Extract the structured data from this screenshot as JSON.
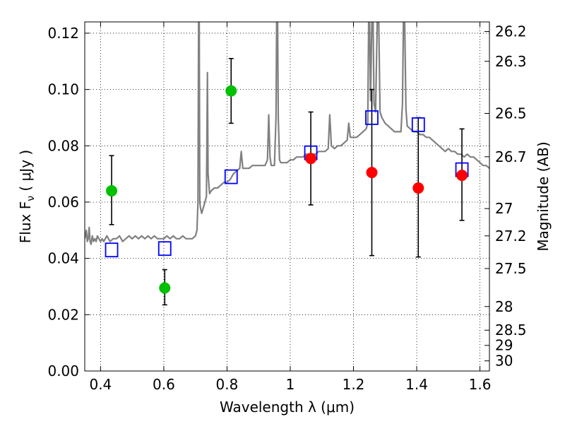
{
  "chart_data": {
    "type": "scatter",
    "xlabel": "Wavelength  λ (μm)",
    "ylabel": "Flux  F",
    "ylabel_sub": "ν",
    "ylabel_unit": "  ( μJy )",
    "ylabel_right": "Magnitude (AB)",
    "xlim": [
      0.35,
      1.63
    ],
    "ylim": [
      0.0,
      0.124
    ],
    "xticks": [
      0.4,
      0.6,
      0.8,
      1.0,
      1.2,
      1.4,
      1.6
    ],
    "xtick_labels": [
      "0.4",
      "0.6",
      "0.8",
      "1",
      "1.2",
      "1.4",
      "1.6"
    ],
    "yticks": [
      0.0,
      0.02,
      0.04,
      0.06,
      0.08,
      0.1,
      0.12
    ],
    "ytick_labels": [
      "0.00",
      "0.02",
      "0.04",
      "0.06",
      "0.08",
      "0.10",
      "0.12"
    ],
    "right_ticks": [
      {
        "label": "26.2",
        "flux": 0.1206
      },
      {
        "label": "26.3",
        "flux": 0.11
      },
      {
        "label": "26.5",
        "flux": 0.0915
      },
      {
        "label": "26.7",
        "flux": 0.0761
      },
      {
        "label": "27",
        "flux": 0.0577
      },
      {
        "label": "27.2",
        "flux": 0.048
      },
      {
        "label": "27.5",
        "flux": 0.0364
      },
      {
        "label": "28",
        "flux": 0.0229
      },
      {
        "label": "28.5",
        "flux": 0.0145
      },
      {
        "label": "29",
        "flux": 0.0091
      },
      {
        "label": "30",
        "flux": 0.0036
      }
    ],
    "grid": true,
    "colors": {
      "spectrum": "#808080",
      "green": "#00c000",
      "red": "#ff0000",
      "model": "#0000ff",
      "errorbar": "#000000"
    },
    "spectrum": [
      [
        0.35,
        0.047
      ],
      [
        0.352,
        0.048
      ],
      [
        0.355,
        0.05
      ],
      [
        0.358,
        0.046
      ],
      [
        0.361,
        0.047
      ],
      [
        0.364,
        0.051
      ],
      [
        0.367,
        0.046
      ],
      [
        0.37,
        0.045
      ],
      [
        0.374,
        0.048
      ],
      [
        0.378,
        0.046
      ],
      [
        0.382,
        0.047
      ],
      [
        0.386,
        0.046
      ],
      [
        0.39,
        0.048
      ],
      [
        0.395,
        0.047
      ],
      [
        0.4,
        0.046
      ],
      [
        0.405,
        0.047
      ],
      [
        0.41,
        0.046
      ],
      [
        0.415,
        0.047
      ],
      [
        0.42,
        0.048
      ],
      [
        0.425,
        0.047
      ],
      [
        0.43,
        0.046
      ],
      [
        0.44,
        0.047
      ],
      [
        0.45,
        0.047
      ],
      [
        0.46,
        0.048
      ],
      [
        0.47,
        0.046
      ],
      [
        0.48,
        0.047
      ],
      [
        0.49,
        0.048
      ],
      [
        0.5,
        0.047
      ],
      [
        0.51,
        0.048
      ],
      [
        0.52,
        0.047
      ],
      [
        0.53,
        0.048
      ],
      [
        0.54,
        0.047
      ],
      [
        0.55,
        0.048
      ],
      [
        0.56,
        0.047
      ],
      [
        0.57,
        0.048
      ],
      [
        0.58,
        0.047
      ],
      [
        0.59,
        0.047
      ],
      [
        0.6,
        0.047
      ],
      [
        0.61,
        0.048
      ],
      [
        0.62,
        0.047
      ],
      [
        0.63,
        0.048
      ],
      [
        0.64,
        0.047
      ],
      [
        0.65,
        0.047
      ],
      [
        0.66,
        0.048
      ],
      [
        0.67,
        0.047
      ],
      [
        0.68,
        0.047
      ],
      [
        0.69,
        0.047
      ],
      [
        0.7,
        0.048
      ],
      [
        0.705,
        0.05
      ],
      [
        0.708,
        0.06
      ],
      [
        0.71,
        0.124
      ],
      [
        0.712,
        0.124
      ],
      [
        0.714,
        0.06
      ],
      [
        0.716,
        0.058
      ],
      [
        0.72,
        0.056
      ],
      [
        0.725,
        0.058
      ],
      [
        0.73,
        0.06
      ],
      [
        0.735,
        0.062
      ],
      [
        0.738,
        0.106
      ],
      [
        0.74,
        0.07
      ],
      [
        0.745,
        0.063
      ],
      [
        0.75,
        0.064
      ],
      [
        0.76,
        0.065
      ],
      [
        0.77,
        0.065
      ],
      [
        0.78,
        0.066
      ],
      [
        0.79,
        0.067
      ],
      [
        0.8,
        0.067
      ],
      [
        0.81,
        0.068
      ],
      [
        0.82,
        0.07
      ],
      [
        0.83,
        0.071
      ],
      [
        0.84,
        0.072
      ],
      [
        0.845,
        0.078
      ],
      [
        0.85,
        0.072
      ],
      [
        0.86,
        0.072
      ],
      [
        0.87,
        0.072
      ],
      [
        0.88,
        0.073
      ],
      [
        0.89,
        0.073
      ],
      [
        0.9,
        0.073
      ],
      [
        0.91,
        0.073
      ],
      [
        0.92,
        0.073
      ],
      [
        0.928,
        0.075
      ],
      [
        0.932,
        0.091
      ],
      [
        0.936,
        0.076
      ],
      [
        0.94,
        0.073
      ],
      [
        0.95,
        0.073
      ],
      [
        0.955,
        0.09
      ],
      [
        0.957,
        0.124
      ],
      [
        0.96,
        0.124
      ],
      [
        0.962,
        0.09
      ],
      [
        0.966,
        0.075
      ],
      [
        0.97,
        0.074
      ],
      [
        0.98,
        0.074
      ],
      [
        0.99,
        0.074
      ],
      [
        1.0,
        0.075
      ],
      [
        1.01,
        0.075
      ],
      [
        1.02,
        0.076
      ],
      [
        1.03,
        0.076
      ],
      [
        1.04,
        0.076
      ],
      [
        1.05,
        0.077
      ],
      [
        1.06,
        0.077
      ],
      [
        1.07,
        0.077
      ],
      [
        1.08,
        0.077
      ],
      [
        1.09,
        0.078
      ],
      [
        1.1,
        0.078
      ],
      [
        1.11,
        0.078
      ],
      [
        1.12,
        0.079
      ],
      [
        1.125,
        0.091
      ],
      [
        1.13,
        0.08
      ],
      [
        1.14,
        0.079
      ],
      [
        1.15,
        0.08
      ],
      [
        1.16,
        0.08
      ],
      [
        1.17,
        0.081
      ],
      [
        1.18,
        0.082
      ],
      [
        1.185,
        0.088
      ],
      [
        1.19,
        0.083
      ],
      [
        1.2,
        0.083
      ],
      [
        1.21,
        0.083
      ],
      [
        1.22,
        0.084
      ],
      [
        1.23,
        0.085
      ],
      [
        1.24,
        0.086
      ],
      [
        1.245,
        0.088
      ],
      [
        1.248,
        0.124
      ],
      [
        1.251,
        0.124
      ],
      [
        1.254,
        0.096
      ],
      [
        1.258,
        0.124
      ],
      [
        1.262,
        0.124
      ],
      [
        1.265,
        0.095
      ],
      [
        1.27,
        0.092
      ],
      [
        1.275,
        0.124
      ],
      [
        1.28,
        0.124
      ],
      [
        1.284,
        0.092
      ],
      [
        1.29,
        0.09
      ],
      [
        1.3,
        0.088
      ],
      [
        1.31,
        0.087
      ],
      [
        1.32,
        0.086
      ],
      [
        1.33,
        0.085
      ],
      [
        1.34,
        0.085
      ],
      [
        1.35,
        0.085
      ],
      [
        1.355,
        0.095
      ],
      [
        1.358,
        0.124
      ],
      [
        1.362,
        0.124
      ],
      [
        1.366,
        0.093
      ],
      [
        1.37,
        0.087
      ],
      [
        1.38,
        0.086
      ],
      [
        1.39,
        0.085
      ],
      [
        1.4,
        0.085
      ],
      [
        1.41,
        0.084
      ],
      [
        1.42,
        0.084
      ],
      [
        1.43,
        0.083
      ],
      [
        1.44,
        0.083
      ],
      [
        1.45,
        0.082
      ],
      [
        1.46,
        0.081
      ],
      [
        1.47,
        0.08
      ],
      [
        1.48,
        0.079
      ],
      [
        1.49,
        0.078
      ],
      [
        1.5,
        0.079
      ],
      [
        1.51,
        0.078
      ],
      [
        1.52,
        0.078
      ],
      [
        1.53,
        0.077
      ],
      [
        1.54,
        0.077
      ],
      [
        1.55,
        0.076
      ],
      [
        1.56,
        0.077
      ],
      [
        1.57,
        0.076
      ],
      [
        1.58,
        0.076
      ],
      [
        1.59,
        0.075
      ],
      [
        1.6,
        0.074
      ],
      [
        1.61,
        0.073
      ],
      [
        1.62,
        0.073
      ],
      [
        1.63,
        0.072
      ]
    ],
    "green_points": [
      {
        "x": 0.435,
        "y": 0.064,
        "err_low": 0.052,
        "err_high": 0.0765
      },
      {
        "x": 0.603,
        "y": 0.0295,
        "err_low": 0.0235,
        "err_high": 0.036
      },
      {
        "x": 0.813,
        "y": 0.0995,
        "err_low": 0.088,
        "err_high": 0.111
      }
    ],
    "red_points": [
      {
        "x": 1.065,
        "y": 0.0755,
        "err_low": 0.059,
        "err_high": 0.092
      },
      {
        "x": 1.258,
        "y": 0.0705,
        "err_low": 0.041,
        "err_high": 0.1
      },
      {
        "x": 1.405,
        "y": 0.065,
        "err_low": 0.0405,
        "err_high": 0.09
      },
      {
        "x": 1.543,
        "y": 0.0695,
        "err_low": 0.0535,
        "err_high": 0.086
      }
    ],
    "model_points": [
      {
        "x": 0.435,
        "y": 0.043
      },
      {
        "x": 0.603,
        "y": 0.0435
      },
      {
        "x": 0.813,
        "y": 0.069
      },
      {
        "x": 1.065,
        "y": 0.0775
      },
      {
        "x": 1.258,
        "y": 0.09
      },
      {
        "x": 1.405,
        "y": 0.0875
      },
      {
        "x": 1.543,
        "y": 0.0715
      }
    ]
  }
}
